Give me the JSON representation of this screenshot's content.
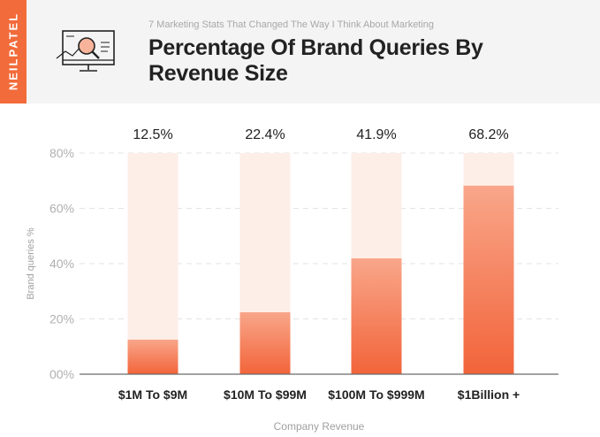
{
  "brand": {
    "name": "NEILPATEL",
    "color": "#f26b3a"
  },
  "header": {
    "subtitle": "7 Marketing Stats That Changed The Way I Think About Marketing",
    "title": "Percentage Of Brand Queries By Revenue Size",
    "icon": "monitor-magnifier-icon"
  },
  "chart_data": {
    "type": "bar",
    "categories": [
      "$1M To $9M",
      "$10M To $99M",
      "$100M To $999M",
      "$1Billion +"
    ],
    "values": [
      12.5,
      22.4,
      41.9,
      68.2
    ],
    "value_labels": [
      "12.5%",
      "22.4%",
      "41.9%",
      "68.2%"
    ],
    "yticks": [
      0,
      20,
      40,
      60,
      80
    ],
    "ytick_labels": [
      "00%",
      "20%",
      "40%",
      "60%",
      "80%"
    ],
    "ylim": [
      0,
      80
    ],
    "xlabel": "Company Revenue",
    "ylabel": "Brand queries %",
    "grid": true,
    "colors": {
      "bar_top": "#f9a68a",
      "bar_bottom": "#f2643a",
      "track": "#fdeee8",
      "grid": "#e3e3e3"
    }
  }
}
